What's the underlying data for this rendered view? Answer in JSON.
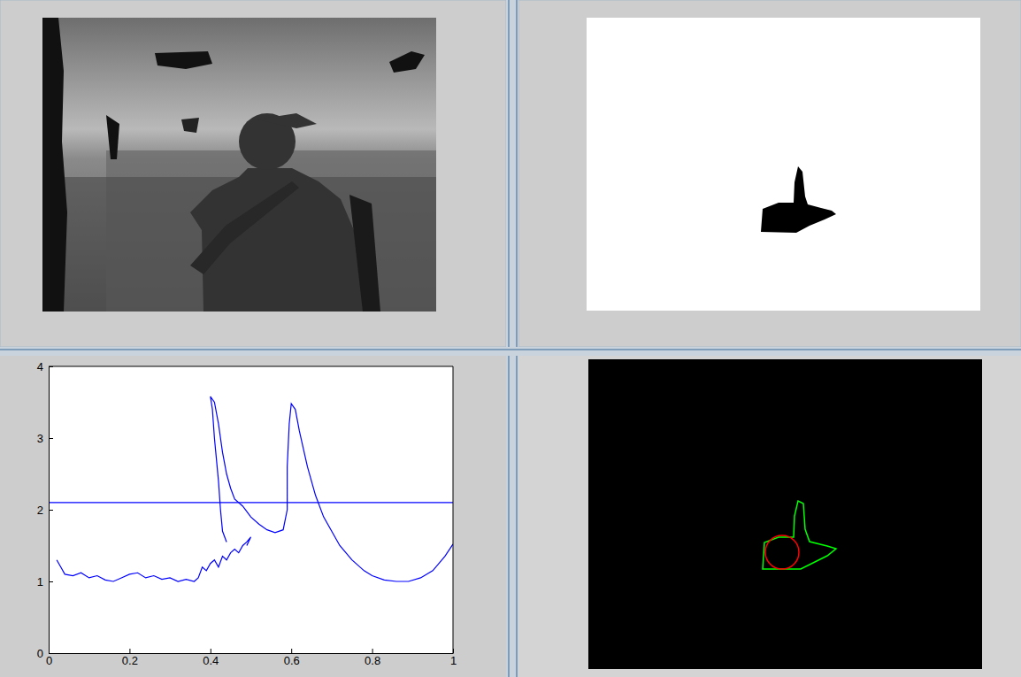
{
  "chart_data": {
    "type": "line",
    "xlim": [
      0,
      1
    ],
    "xticks": [
      0,
      0.2,
      0.4,
      0.6,
      0.8,
      1
    ],
    "ylim": [
      0,
      4
    ],
    "yticks": [
      0,
      1,
      2,
      3,
      4
    ],
    "grid": false,
    "series": [
      {
        "color": "#0000ff",
        "x": [
          0.02,
          0.03,
          0.04,
          0.06,
          0.08,
          0.1,
          0.12,
          0.14,
          0.16,
          0.18,
          0.2,
          0.22,
          0.24,
          0.26,
          0.28,
          0.3,
          0.32,
          0.34,
          0.36,
          0.37,
          0.38,
          0.39,
          0.4,
          0.41,
          0.42,
          0.43,
          0.44,
          0.45,
          0.46,
          0.47,
          0.48,
          0.49,
          0.5,
          0.49,
          null,
          0.44,
          0.43,
          0.425,
          0.42,
          0.41,
          0.405,
          0.4,
          0.41,
          0.42,
          0.43,
          0.44,
          0.45,
          0.46,
          0.48,
          0.5,
          0.52,
          0.54,
          0.56,
          0.58,
          0.59,
          0.59,
          0.595,
          0.6,
          0.61,
          0.62,
          0.64,
          0.66,
          0.68,
          0.7,
          0.72,
          0.75,
          0.78,
          0.8,
          0.83,
          0.86,
          0.89,
          0.92,
          0.95,
          0.98,
          1.0
        ],
        "values": [
          1.3,
          1.2,
          1.1,
          1.08,
          1.12,
          1.05,
          1.08,
          1.02,
          1.0,
          1.05,
          1.1,
          1.12,
          1.05,
          1.08,
          1.03,
          1.05,
          1.0,
          1.03,
          1.0,
          1.05,
          1.2,
          1.15,
          1.25,
          1.3,
          1.2,
          1.35,
          1.3,
          1.4,
          1.45,
          1.4,
          1.5,
          1.55,
          1.62,
          1.5,
          null,
          1.55,
          1.7,
          2.0,
          2.4,
          3.0,
          3.4,
          3.58,
          3.5,
          3.2,
          2.8,
          2.5,
          2.3,
          2.15,
          2.05,
          1.9,
          1.8,
          1.72,
          1.68,
          1.72,
          2.0,
          2.6,
          3.2,
          3.48,
          3.4,
          3.1,
          2.6,
          2.2,
          1.9,
          1.7,
          1.5,
          1.3,
          1.15,
          1.08,
          1.02,
          1.0,
          1.0,
          1.05,
          1.15,
          1.35,
          1.52
        ]
      },
      {
        "color": "#0000ff",
        "x": [
          0,
          1
        ],
        "values": [
          2.1,
          2.1
        ]
      }
    ]
  }
}
